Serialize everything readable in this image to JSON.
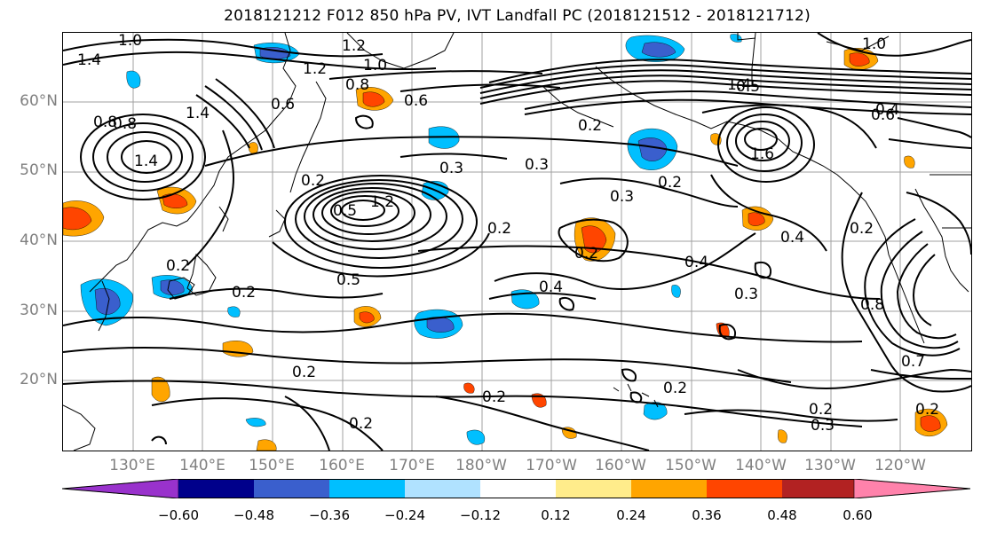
{
  "title": "2018121212 F012 850 hPa PV, IVT Landfall PC (2018121512 - 2018121712)",
  "lat_labels": [
    "60°N",
    "50°N",
    "40°N",
    "30°N",
    "20°N"
  ],
  "lon_labels": [
    "130°E",
    "140°E",
    "150°E",
    "160°E",
    "170°E",
    "180°W",
    "170°W",
    "160°W",
    "150°W",
    "140°W",
    "130°W",
    "120°W"
  ],
  "colorbar": {
    "colors": [
      "#9932cc",
      "#00008b",
      "#3a5fcd",
      "#00bfff",
      "#b0e2ff",
      "#ffffff",
      "#ffec8b",
      "#ffa500",
      "#ff4500",
      "#b22222",
      "#ff82ab"
    ],
    "ticks": [
      "−0.60",
      "−0.48",
      "−0.36",
      "−0.24",
      "−0.12",
      "0.12",
      "0.24",
      "0.36",
      "0.48",
      "0.60"
    ]
  },
  "contour_labels": [
    "1.0",
    "1.4",
    "1.2",
    "1.0",
    "0.8",
    "0.6",
    "0.6",
    "0.8",
    "1.2",
    "1.4",
    "0.8",
    "1.4",
    "1.2",
    "0.5",
    "0.3",
    "0.3",
    "0.2",
    "0.2",
    "0.2",
    "0.3",
    "0.2",
    "0.4",
    "0.5",
    "0.2",
    "0.2",
    "0.5",
    "0.2",
    "0.2",
    "0.4",
    "0.2",
    "0.4",
    "0.3",
    "0.2",
    "0.2",
    "0.2",
    "0.8",
    "0.7",
    "0.2",
    "0.3",
    "0.2",
    "1.0",
    "1.4",
    "1.6",
    "0.6",
    "0.4"
  ]
}
